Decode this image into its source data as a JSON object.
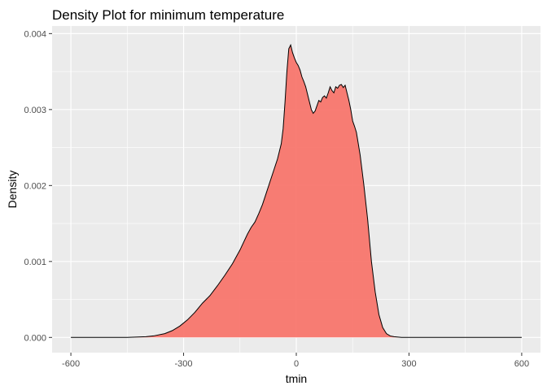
{
  "chart_data": {
    "type": "area",
    "title": "Density Plot for minimum temperature",
    "xlabel": "tmin",
    "ylabel": "Density",
    "xlim": [
      -650,
      650
    ],
    "ylim": [
      -0.0002,
      0.0041
    ],
    "x_ticks": [
      {
        "value": -600,
        "label": "-600"
      },
      {
        "value": -300,
        "label": "-300"
      },
      {
        "value": 0,
        "label": "0"
      },
      {
        "value": 300,
        "label": "300"
      },
      {
        "value": 600,
        "label": "600"
      }
    ],
    "y_ticks": [
      {
        "value": 0.0,
        "label": "0.000"
      },
      {
        "value": 0.001,
        "label": "0.001"
      },
      {
        "value": 0.002,
        "label": "0.002"
      },
      {
        "value": 0.003,
        "label": "0.003"
      },
      {
        "value": 0.004,
        "label": "0.004"
      }
    ],
    "x_minor": [
      -450,
      -150,
      150,
      450
    ],
    "y_minor": [
      0.0005,
      0.0015,
      0.0025,
      0.0035
    ],
    "grid": true,
    "legend": "none",
    "colors": {
      "panel_bg": "#ebebeb",
      "grid": "#ffffff",
      "fill": "#f8766d",
      "fill_opacity": 0.95,
      "outline": "#000000"
    },
    "series": [
      {
        "x": [
          -600,
          -500,
          -450,
          -400,
          -380,
          -350,
          -330,
          -310,
          -290,
          -270,
          -250,
          -230,
          -210,
          -190,
          -170,
          -150,
          -130,
          -120,
          -110,
          -100,
          -90,
          -80,
          -70,
          -60,
          -50,
          -45,
          -40,
          -35,
          -30,
          -25,
          -20,
          -15,
          -10,
          -5,
          0,
          5,
          10,
          15,
          20,
          25,
          30,
          35,
          40,
          45,
          50,
          55,
          60,
          65,
          70,
          75,
          80,
          85,
          90,
          95,
          100,
          105,
          110,
          115,
          120,
          125,
          130,
          135,
          140,
          145,
          150,
          155,
          160,
          170,
          180,
          190,
          200,
          210,
          220,
          230,
          240,
          250,
          260,
          280,
          300,
          400,
          500,
          600
        ],
        "y": [
          0,
          0,
          0,
          1e-05,
          2e-05,
          5e-05,
          9e-05,
          0.00015,
          0.00023,
          0.00033,
          0.00045,
          0.00055,
          0.00068,
          0.00082,
          0.00097,
          0.00115,
          0.00136,
          0.00145,
          0.00152,
          0.00163,
          0.00175,
          0.0019,
          0.00205,
          0.0022,
          0.00235,
          0.00245,
          0.00255,
          0.00275,
          0.0031,
          0.0035,
          0.0038,
          0.00385,
          0.00375,
          0.00368,
          0.00362,
          0.00358,
          0.00352,
          0.00343,
          0.00337,
          0.0033,
          0.0032,
          0.0031,
          0.003,
          0.00295,
          0.00298,
          0.00305,
          0.00312,
          0.0031,
          0.00316,
          0.00318,
          0.00315,
          0.00322,
          0.0033,
          0.00325,
          0.00322,
          0.0033,
          0.00328,
          0.00332,
          0.00333,
          0.00329,
          0.00332,
          0.00322,
          0.00312,
          0.003,
          0.00285,
          0.00278,
          0.0027,
          0.0024,
          0.002,
          0.00155,
          0.001,
          0.0006,
          0.0003,
          0.00013,
          5e-05,
          2e-05,
          1e-05,
          0,
          0,
          0,
          0,
          0
        ]
      }
    ]
  }
}
